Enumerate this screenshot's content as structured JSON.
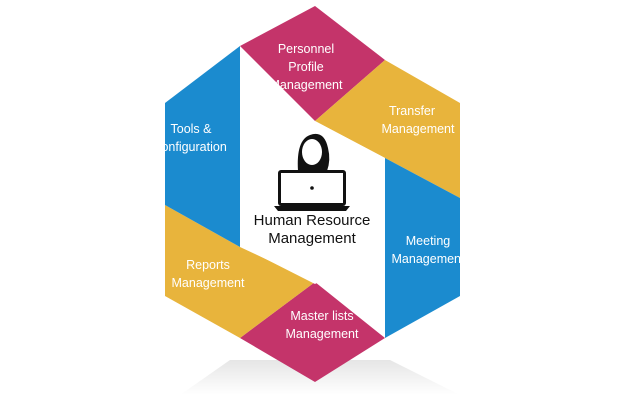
{
  "colors": {
    "magenta": "#c4346a",
    "yellow": "#e8b43c",
    "blue": "#1b8bcf",
    "icon": "#111111",
    "center_text": "#111111",
    "label_text": "#ffffff"
  },
  "center": {
    "icon": "person-at-laptop-icon",
    "title_line1": "Human Resource",
    "title_line2": "Management"
  },
  "segments": {
    "personnel_profile": {
      "line1": "Personnel",
      "line2": "Profile",
      "line3": "Management"
    },
    "transfer": {
      "line1": "Transfer",
      "line2": "Management"
    },
    "meeting": {
      "line1": "Meeting",
      "line2": "Management"
    },
    "master_lists": {
      "line1": "Master lists",
      "line2": "Management"
    },
    "reports": {
      "line1": "Reports",
      "line2": "Management"
    },
    "tools": {
      "line1": "Tools &",
      "line2": "configuration"
    }
  }
}
